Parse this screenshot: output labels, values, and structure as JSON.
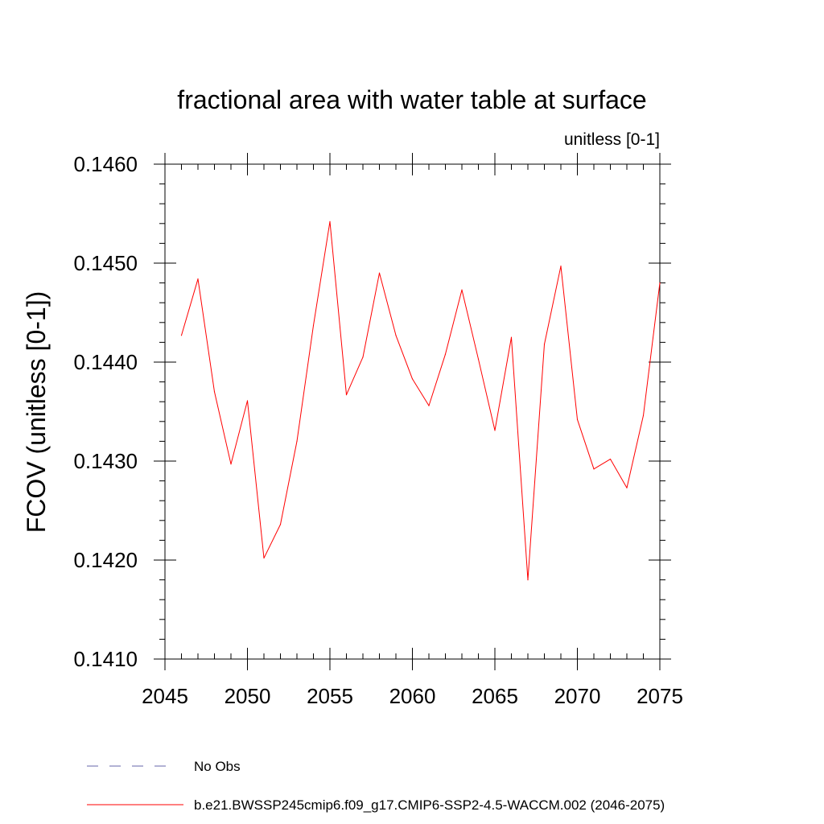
{
  "chart_data": {
    "type": "line",
    "title": "fractional area with water table at surface",
    "units_label": "unitless [0-1]",
    "xlabel": "",
    "ylabel": "FCOV  (unitless [0-1])",
    "xlim": [
      2045,
      2075
    ],
    "ylim": [
      0.141,
      0.146
    ],
    "x_ticks": [
      2045,
      2050,
      2055,
      2060,
      2065,
      2070,
      2075
    ],
    "x_tick_labels": [
      "2045",
      "2050",
      "2055",
      "2060",
      "2065",
      "2070",
      "2075"
    ],
    "y_ticks": [
      0.141,
      0.142,
      0.143,
      0.144,
      0.145,
      0.146
    ],
    "y_tick_labels": [
      "0.1410",
      "0.1420",
      "0.1430",
      "0.1440",
      "0.1450",
      "0.1460"
    ],
    "series": [
      {
        "name": "b.e21.BWSSP245cmip6.f09_g17.CMIP6-SSP2-4.5-WACCM.002 (2046-2075)",
        "color": "#ff0000",
        "x": [
          2046,
          2047,
          2048,
          2049,
          2050,
          2051,
          2052,
          2053,
          2054,
          2055,
          2056,
          2057,
          2058,
          2059,
          2060,
          2061,
          2062,
          2063,
          2064,
          2065,
          2066,
          2067,
          2068,
          2069,
          2070,
          2071,
          2072,
          2073,
          2074,
          2075
        ],
        "y": [
          0.14427,
          0.14484,
          0.1437,
          0.14297,
          0.14361,
          0.14202,
          0.14236,
          0.1432,
          0.14437,
          0.14542,
          0.14367,
          0.14405,
          0.1449,
          0.14427,
          0.14383,
          0.14356,
          0.14408,
          0.14473,
          0.14403,
          0.14331,
          0.14425,
          0.1418,
          0.14418,
          0.14497,
          0.14342,
          0.14292,
          0.14302,
          0.14273,
          0.14346,
          0.1448
        ]
      }
    ],
    "legend": [
      {
        "label": "No Obs",
        "color": "#6666aa",
        "style": "dashed"
      },
      {
        "label": "b.e21.BWSSP245cmip6.f09_g17.CMIP6-SSP2-4.5-WACCM.002 (2046-2075)",
        "color": "#ff0000",
        "style": "solid"
      }
    ],
    "legend_position": "bottom"
  }
}
